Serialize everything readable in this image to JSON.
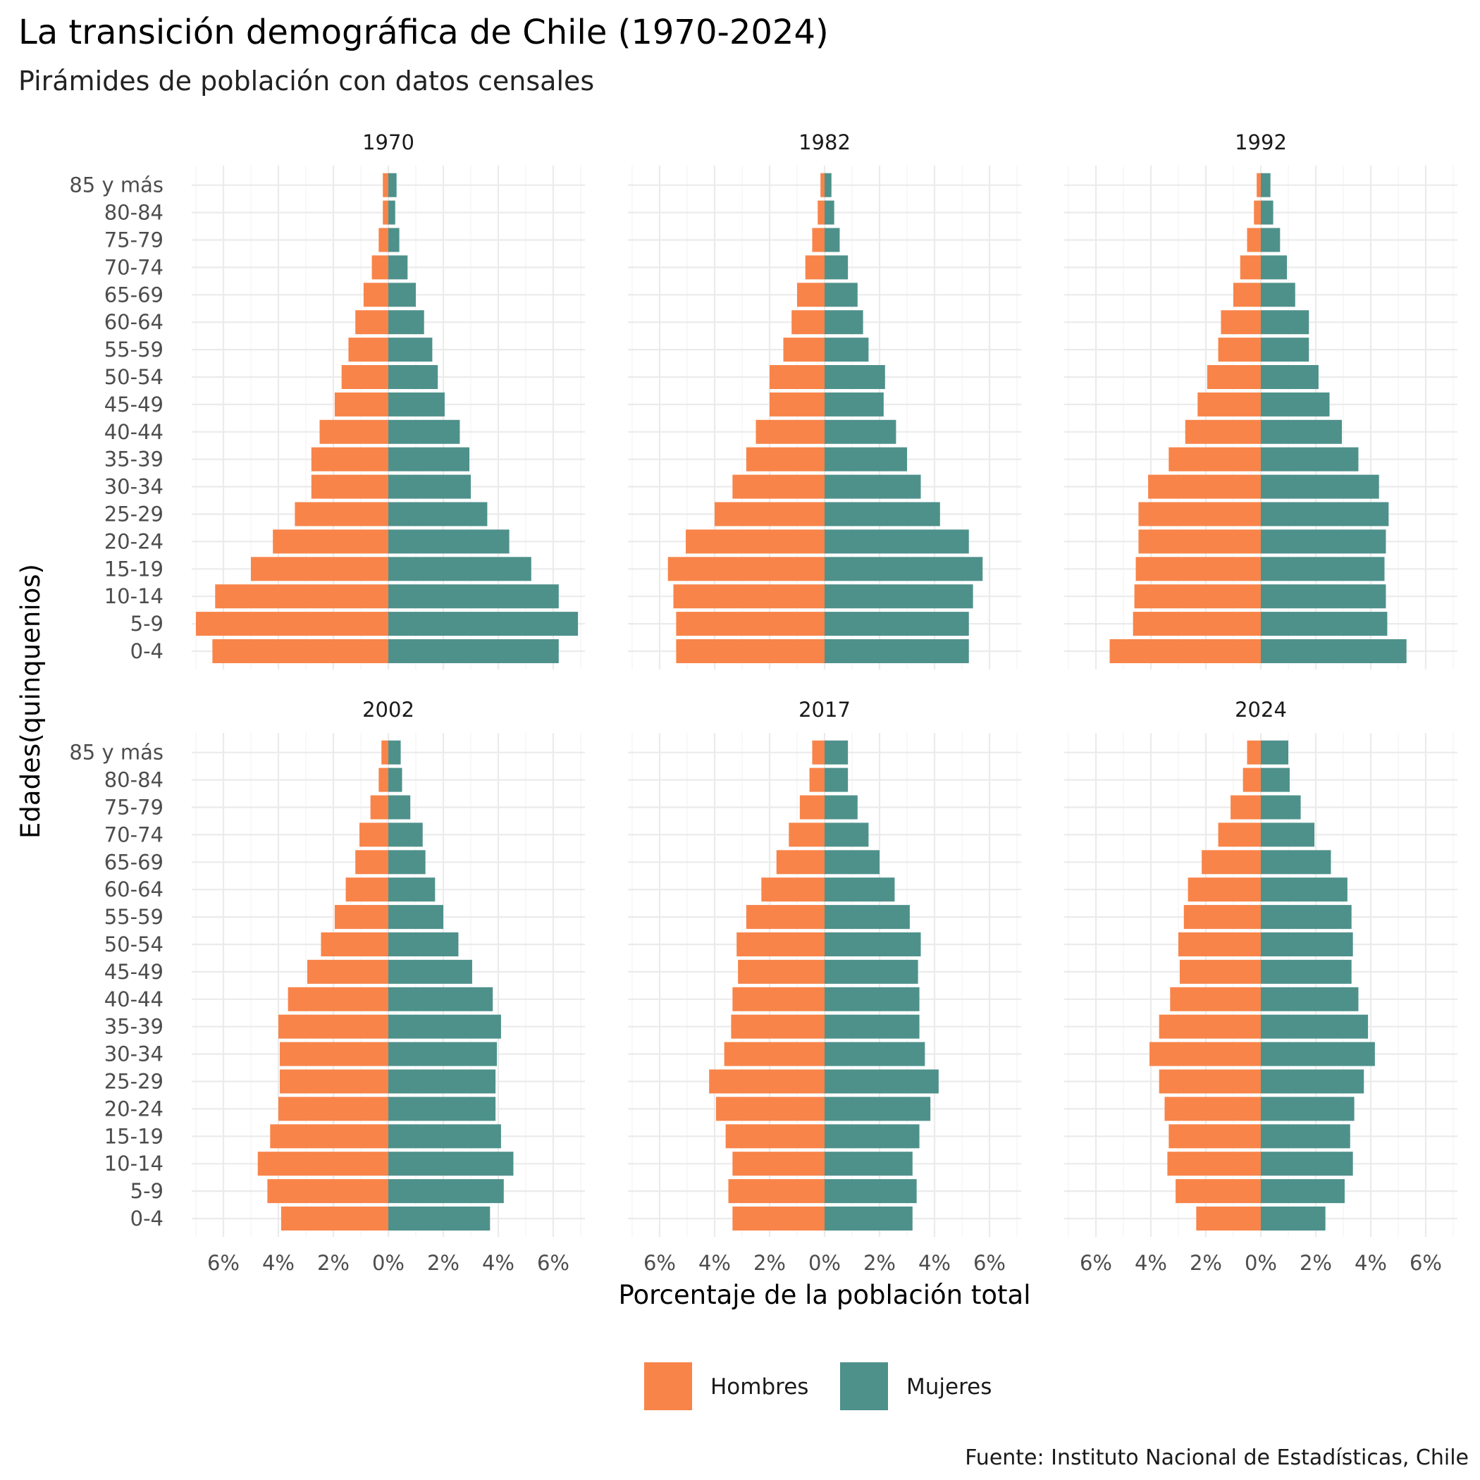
{
  "chart_data": {
    "type": "bar",
    "title": "La transición demográfica de Chile (1970-2024)",
    "subtitle": "Pirámides de población con datos censales",
    "xlabel": "Porcentaje de la población total",
    "ylabel": "Edades(quinquenios)",
    "caption": "Fuente: Instituto Nacional de Estadísticas, Chile",
    "xlim": [
      -7,
      7
    ],
    "x_ticks": [
      -6,
      -4,
      -2,
      0,
      2,
      4,
      6
    ],
    "x_tick_labels": [
      "6%",
      "4%",
      "2%",
      "0%",
      "2%",
      "4%",
      "6%"
    ],
    "grid": true,
    "legend_position": "bottom",
    "categories": [
      "0-4",
      "5-9",
      "10-14",
      "15-19",
      "20-24",
      "25-29",
      "30-34",
      "35-39",
      "40-44",
      "45-49",
      "50-54",
      "55-59",
      "60-64",
      "65-69",
      "70-74",
      "75-79",
      "80-84",
      "85 y más"
    ],
    "series_meta": [
      {
        "name": "Hombres",
        "color": "#F8844A"
      },
      {
        "name": "Mujeres",
        "color": "#4E918B"
      }
    ],
    "panels": [
      {
        "label": "1970",
        "hombres": [
          6.4,
          7.0,
          6.3,
          5.0,
          4.2,
          3.4,
          2.8,
          2.8,
          2.5,
          1.95,
          1.7,
          1.45,
          1.2,
          0.9,
          0.6,
          0.35,
          0.2,
          0.2
        ],
        "mujeres": [
          6.2,
          6.9,
          6.2,
          5.2,
          4.4,
          3.6,
          3.0,
          2.95,
          2.6,
          2.05,
          1.8,
          1.6,
          1.3,
          1.0,
          0.7,
          0.4,
          0.25,
          0.3
        ]
      },
      {
        "label": "1982",
        "hombres": [
          5.4,
          5.4,
          5.5,
          5.7,
          5.05,
          4.0,
          3.35,
          2.85,
          2.5,
          2.0,
          2.0,
          1.5,
          1.2,
          1.0,
          0.7,
          0.45,
          0.25,
          0.15
        ],
        "mujeres": [
          5.25,
          5.25,
          5.4,
          5.75,
          5.25,
          4.2,
          3.5,
          3.0,
          2.6,
          2.15,
          2.2,
          1.6,
          1.4,
          1.2,
          0.85,
          0.55,
          0.35,
          0.25
        ]
      },
      {
        "label": "1992",
        "hombres": [
          5.5,
          4.65,
          4.6,
          4.55,
          4.45,
          4.45,
          4.1,
          3.35,
          2.75,
          2.3,
          1.95,
          1.55,
          1.45,
          1.0,
          0.75,
          0.5,
          0.25,
          0.15
        ],
        "mujeres": [
          5.3,
          4.6,
          4.55,
          4.5,
          4.55,
          4.65,
          4.3,
          3.55,
          2.95,
          2.5,
          2.1,
          1.75,
          1.75,
          1.25,
          0.95,
          0.7,
          0.45,
          0.35
        ]
      },
      {
        "label": "2002",
        "hombres": [
          3.9,
          4.4,
          4.75,
          4.3,
          4.0,
          3.95,
          3.95,
          4.0,
          3.65,
          2.95,
          2.45,
          1.95,
          1.55,
          1.2,
          1.05,
          0.65,
          0.35,
          0.25
        ],
        "mujeres": [
          3.7,
          4.2,
          4.55,
          4.1,
          3.9,
          3.9,
          3.95,
          4.1,
          3.8,
          3.05,
          2.55,
          2.0,
          1.7,
          1.35,
          1.25,
          0.8,
          0.5,
          0.45
        ]
      },
      {
        "label": "2017",
        "hombres": [
          3.35,
          3.5,
          3.35,
          3.6,
          3.95,
          4.2,
          3.65,
          3.4,
          3.35,
          3.15,
          3.2,
          2.85,
          2.3,
          1.75,
          1.3,
          0.9,
          0.55,
          0.45
        ],
        "mujeres": [
          3.2,
          3.35,
          3.2,
          3.45,
          3.85,
          4.15,
          3.65,
          3.45,
          3.45,
          3.4,
          3.5,
          3.1,
          2.55,
          2.0,
          1.6,
          1.2,
          0.85,
          0.85
        ]
      },
      {
        "label": "2024",
        "hombres": [
          2.35,
          3.1,
          3.4,
          3.35,
          3.5,
          3.7,
          4.05,
          3.7,
          3.3,
          2.95,
          3.0,
          2.8,
          2.65,
          2.15,
          1.55,
          1.1,
          0.65,
          0.5
        ],
        "mujeres": [
          2.35,
          3.05,
          3.35,
          3.25,
          3.4,
          3.75,
          4.15,
          3.9,
          3.55,
          3.3,
          3.35,
          3.3,
          3.15,
          2.55,
          1.95,
          1.45,
          1.05,
          1.0
        ]
      }
    ]
  }
}
